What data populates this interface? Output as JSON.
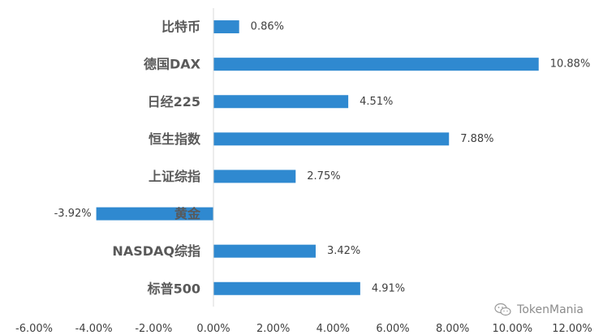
{
  "chart_data": {
    "type": "bar",
    "orientation": "horizontal",
    "categories": [
      "比特币",
      "德国DAX",
      "日经225",
      "恒生指数",
      "上证综指",
      "黄金",
      "NASDAQ综指",
      "标普500"
    ],
    "values": [
      0.86,
      10.88,
      4.51,
      7.88,
      2.75,
      -3.92,
      3.42,
      4.91
    ],
    "data_labels": [
      "0.86%",
      "10.88%",
      "4.51%",
      "7.88%",
      "2.75%",
      "-3.92%",
      "3.42%",
      "4.91%"
    ],
    "xlim": [
      -6,
      12
    ],
    "xticks": [
      -6,
      -4,
      -2,
      0,
      2,
      4,
      6,
      8,
      10,
      12
    ],
    "xtick_labels": [
      "-6.00%",
      "-4.00%",
      "-2.00%",
      "0.00%",
      "2.00%",
      "4.00%",
      "6.00%",
      "8.00%",
      "10.00%",
      "12.00%"
    ],
    "bar_color": "#2f89d0",
    "grid": false,
    "title": "",
    "xlabel": "",
    "ylabel": ""
  },
  "watermark": {
    "text": "TokenMania",
    "icon": "wechat-icon"
  }
}
